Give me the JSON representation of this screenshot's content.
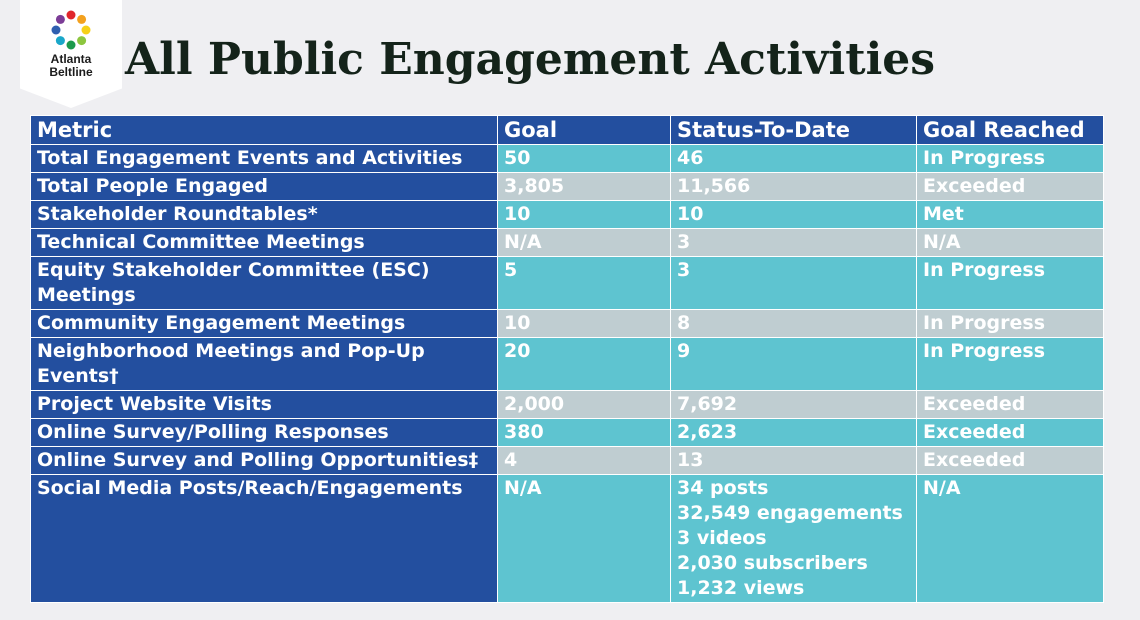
{
  "logo": {
    "line1": "Atlanta",
    "line2": "Beltline",
    "icon": "beltline-ring-logo"
  },
  "title": "All Public Engagement Activities",
  "table": {
    "headers": [
      "Metric",
      "Goal",
      "Status-To-Date",
      "Goal Reached"
    ],
    "rows": [
      {
        "metric": "Total Engagement Events and Activities",
        "goal": "50",
        "status": "46",
        "reached": "In Progress"
      },
      {
        "metric": "Total People Engaged",
        "goal": "3,805",
        "status": "11,566",
        "reached": "Exceeded"
      },
      {
        "metric": "Stakeholder Roundtables*",
        "goal": "10",
        "status": "10",
        "reached": "Met"
      },
      {
        "metric": "Technical Committee Meetings",
        "goal": "N/A",
        "status": "3",
        "reached": "N/A"
      },
      {
        "metric": "Equity Stakeholder Committee (ESC) Meetings",
        "goal": "5",
        "status": "3",
        "reached": "In Progress"
      },
      {
        "metric": "Community Engagement Meetings",
        "goal": "10",
        "status": "8",
        "reached": "In Progress"
      },
      {
        "metric": "Neighborhood Meetings and Pop-Up Events†",
        "goal": "20",
        "status": "9",
        "reached": "In Progress"
      },
      {
        "metric": "Project Website Visits",
        "goal": "2,000",
        "status": "7,692",
        "reached": "Exceeded"
      },
      {
        "metric": "Online Survey/Polling Responses",
        "goal": "380",
        "status": "2,623",
        "reached": "Exceeded"
      },
      {
        "metric": "Online Survey and Polling Opportunities‡",
        "goal": "4",
        "status": "13",
        "reached": "Exceeded"
      },
      {
        "metric": "Social Media Posts/Reach/Engagements",
        "goal": "N/A",
        "status_lines": [
          "34 posts",
          "32,549 engagements",
          "3 videos",
          "2,030 subscribers",
          "1,232 views"
        ],
        "reached": "N/A"
      }
    ]
  },
  "colors": {
    "metric_column": "#234f9f",
    "teal_row": "#5ec4d0",
    "gray_row": "#bfcdd1",
    "title": "#14231a"
  }
}
